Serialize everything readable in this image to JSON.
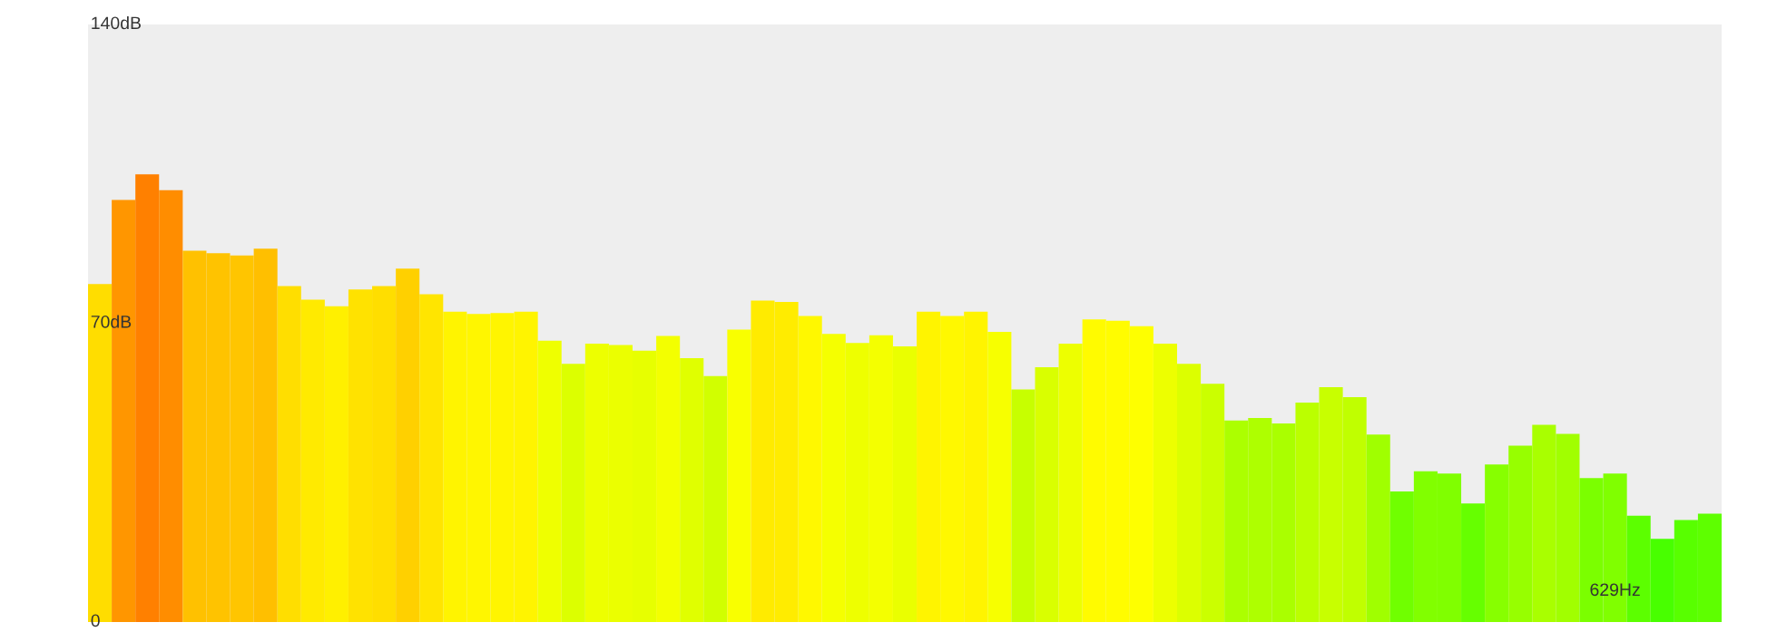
{
  "chart_data": {
    "type": "bar",
    "categories": [
      null,
      null,
      null,
      null,
      null,
      null,
      null,
      null,
      null,
      null,
      null,
      null,
      null,
      null,
      null,
      null,
      null,
      null,
      null,
      null,
      null,
      null,
      null,
      null,
      null,
      null,
      null,
      null,
      null,
      null,
      null,
      null,
      null,
      null,
      null,
      null,
      null,
      null,
      null,
      null,
      null,
      null,
      null,
      null,
      null,
      null,
      null,
      null,
      null,
      null,
      null,
      null,
      null,
      null,
      null,
      null,
      null,
      null,
      null,
      null,
      null,
      null,
      null,
      null,
      "629Hz",
      null,
      null,
      null,
      null
    ],
    "values": [
      79.2,
      98.9,
      104.9,
      101.2,
      87.0,
      86.4,
      85.9,
      87.5,
      78.7,
      75.5,
      74.0,
      77.9,
      78.7,
      82.8,
      76.8,
      72.7,
      72.2,
      72.4,
      72.7,
      65.9,
      60.5,
      65.2,
      64.9,
      63.6,
      67.0,
      61.8,
      57.6,
      68.5,
      75.3,
      75.0,
      71.7,
      67.5,
      65.4,
      67.2,
      64.6,
      72.7,
      71.7,
      72.7,
      68.0,
      54.5,
      59.7,
      65.2,
      70.9,
      70.6,
      69.3,
      65.2,
      60.5,
      55.8,
      47.2,
      47.8,
      46.5,
      51.4,
      55.0,
      52.7,
      43.9,
      30.6,
      35.3,
      34.8,
      27.8,
      36.9,
      41.3,
      46.2,
      44.1,
      33.7,
      34.8,
      24.9,
      19.5,
      23.9,
      25.4
    ],
    "colors": [
      "#ffdd00",
      "#ff9600",
      "#ff8000",
      "#ff8d00",
      "#ffc100",
      "#ffc300",
      "#ffc500",
      "#ffbf00",
      "#ffde00",
      "#ffea00",
      "#fff000",
      "#ffe200",
      "#ffde00",
      "#ffd000",
      "#ffe500",
      "#fff400",
      "#fff600",
      "#fff500",
      "#fff400",
      "#efff00",
      "#dcff00",
      "#edff00",
      "#ebff00",
      "#e7ff00",
      "#f3ff00",
      "#e0ff00",
      "#d1ff00",
      "#f9ff00",
      "#ffeb00",
      "#ffec00",
      "#fff800",
      "#f5ff00",
      "#eeff00",
      "#f4ff00",
      "#eaff00",
      "#fff400",
      "#fff800",
      "#fff400",
      "#f7ff00",
      "#c7ff00",
      "#d9ff00",
      "#edff00",
      "#fffb00",
      "#fffc00",
      "#feff00",
      "#edff00",
      "#dcff00",
      "#cbff00",
      "#acff00",
      "#aeff00",
      "#aaff00",
      "#bbff00",
      "#c8ff00",
      "#c0ff00",
      "#a0ff00",
      "#70ff00",
      "#81ff00",
      "#80ff00",
      "#66ff00",
      "#87ff00",
      "#97ff00",
      "#a9ff00",
      "#a1ff00",
      "#7bff00",
      "#80ff00",
      "#5cff00",
      "#48ff00",
      "#58ff00",
      "#5eff00"
    ],
    "ylim": [
      0,
      140
    ],
    "yticks": [
      {
        "value": 0,
        "label": "0"
      },
      {
        "value": 70,
        "label": "70dB"
      },
      {
        "value": 140,
        "label": "140dB"
      }
    ],
    "grid": false,
    "legend": false
  }
}
